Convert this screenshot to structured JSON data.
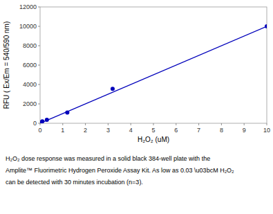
{
  "chart_data": {
    "type": "scatter",
    "xlabel": "H₂O₂ (uM)",
    "ylabel": "RFU ( Ex/Em = 540/590 nm)",
    "annotations": [
      "H₂O₂ dose response was measured in a solid black 384-well plate with the",
      "Amplite™ Fluorimetric Hydrogen Peroxide Assay Kit. As low as 0.03 \\u03bcM H₂O₂",
      "can be detected with 30 minutes incubation (n=3)."
    ],
    "series": [
      {
        "type": "line",
        "color": "#0000bb",
        "x": [
          0.0,
          10.0
        ],
        "values": [
          0,
          10000
        ]
      },
      {
        "type": "scatter",
        "color": "#0000bb",
        "x": [
          0.05,
          0.1,
          0.3,
          1.2,
          3.2,
          10.0
        ],
        "values": [
          100,
          200,
          350,
          1100,
          3550,
          10000
        ]
      }
    ],
    "xlim": [
      0,
      10
    ],
    "ylim": [
      0,
      12000
    ],
    "xticks": [
      0,
      1,
      2,
      3,
      4,
      5,
      6,
      7,
      8,
      9,
      10
    ],
    "yticks": [
      0,
      2000,
      4000,
      6000,
      8000,
      10000,
      12000
    ],
    "grid": false
  }
}
